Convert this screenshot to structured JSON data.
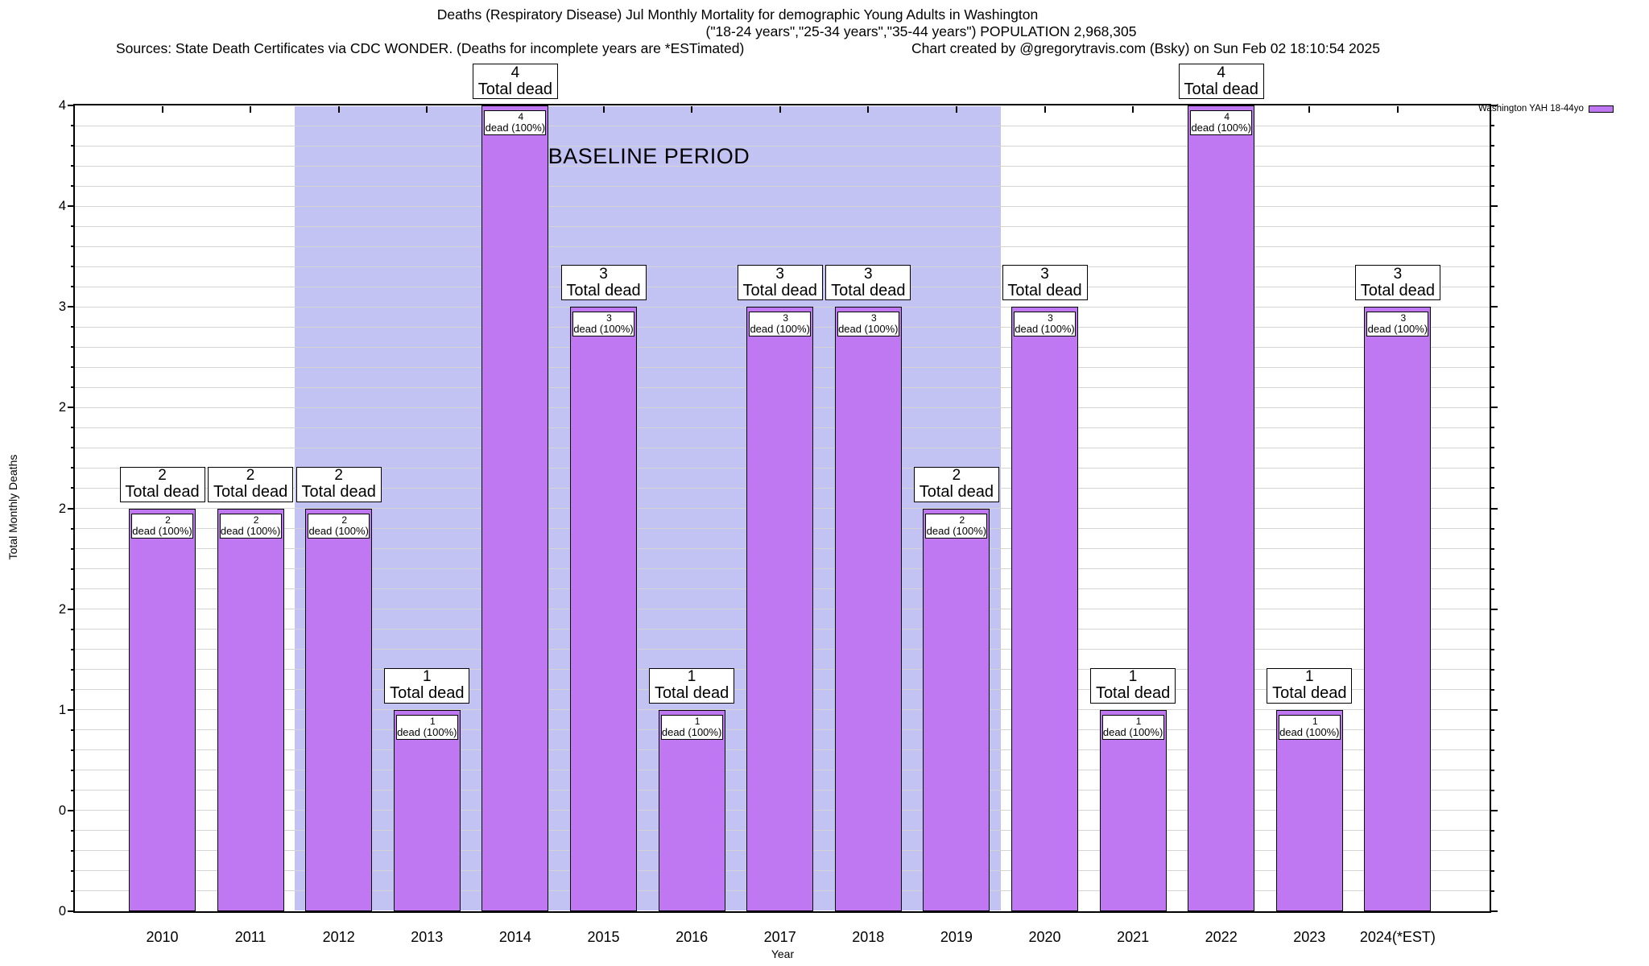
{
  "title": {
    "line1": "Deaths (Respiratory Disease) Jul Monthly Mortality for demographic Young Adults in Washington",
    "line2": "(\"18-24 years\",\"25-34 years\",\"35-44 years\") POPULATION 2,968,305",
    "sources": "Sources: State Death Certificates via CDC WONDER. (Deaths for incomplete years are *ESTimated)",
    "credit": "Chart created by @gregorytravis.com (Bsky) on Sun Feb 02 18:10:54 2025"
  },
  "legend": {
    "label": "Washington YAH 18-44yo"
  },
  "axes": {
    "ylabel": "Total Monthly Deaths",
    "xlabel": "Year",
    "y_ticks": [
      {
        "value": 0.0,
        "label": "0"
      },
      {
        "value": 0.5,
        "label": "0"
      },
      {
        "value": 1.0,
        "label": "1"
      },
      {
        "value": 1.5,
        "label": "2"
      },
      {
        "value": 2.0,
        "label": "2"
      },
      {
        "value": 2.5,
        "label": "2"
      },
      {
        "value": 3.0,
        "label": "3"
      },
      {
        "value": 3.5,
        "label": "4"
      },
      {
        "value": 4.0,
        "label": "4"
      }
    ]
  },
  "colors": {
    "bar_fill": "#bf78f2",
    "bar_border": "#000000",
    "baseline_band": "#c3c3f3",
    "gridline": "#d4d4d4"
  },
  "chart_data": {
    "type": "bar",
    "title": "Deaths (Respiratory Disease) Jul Monthly Mortality for demographic Young Adults in Washington",
    "xlabel": "Year",
    "ylabel": "Total Monthly Deaths",
    "ylim": [
      0,
      4
    ],
    "minor_grid_step": 0.1,
    "categories": [
      "2010",
      "2011",
      "2012",
      "2013",
      "2014",
      "2015",
      "2016",
      "2017",
      "2018",
      "2019",
      "2020",
      "2021",
      "2022",
      "2023",
      "2024(*EST)"
    ],
    "values": [
      2,
      2,
      2,
      1,
      4,
      3,
      1,
      3,
      3,
      2,
      3,
      1,
      4,
      1,
      3
    ],
    "series_name": "Washington YAH 18-44yo",
    "bar_labels": {
      "above": "Total dead",
      "inside": "dead (100%)"
    },
    "baseline_band": {
      "label": "BASELINE PERIOD",
      "from_year": 2011.5,
      "to_year": 2019.5
    }
  }
}
